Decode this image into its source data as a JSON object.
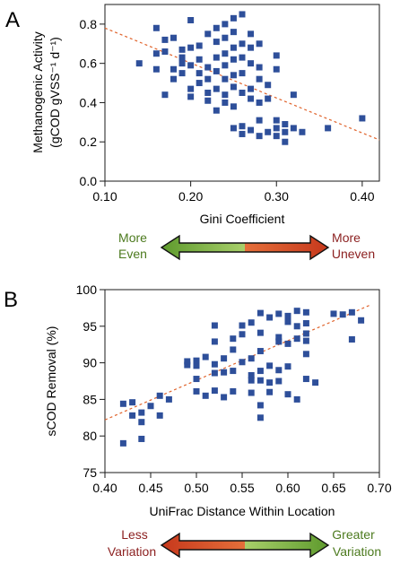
{
  "chart_data": [
    {
      "panel": "A",
      "type": "scatter",
      "xlabel": "Gini Coefficient",
      "ylabel_line1": "Methanogenic Activity",
      "ylabel_line2": "(gCOD gVSS⁻¹ d⁻¹)",
      "xlim": [
        0.1,
        0.42
      ],
      "ylim": [
        0.0,
        0.9
      ],
      "xticks": [
        0.1,
        0.2,
        0.3,
        0.4
      ],
      "xtick_labels": [
        "0.10",
        "0.20",
        "0.30",
        "0.40"
      ],
      "yticks": [
        0.0,
        0.2,
        0.4,
        0.6,
        0.8
      ],
      "ytick_labels": [
        "0.0",
        "0.2",
        "0.4",
        "0.6",
        "0.8"
      ],
      "trendline": {
        "x": [
          0.1,
          0.42
        ],
        "y": [
          0.78,
          0.21
        ]
      },
      "point_color": "#2e4f9a",
      "trend_color": "#e0622a",
      "points": [
        [
          0.14,
          0.6
        ],
        [
          0.16,
          0.78
        ],
        [
          0.16,
          0.65
        ],
        [
          0.16,
          0.57
        ],
        [
          0.17,
          0.72
        ],
        [
          0.17,
          0.66
        ],
        [
          0.17,
          0.44
        ],
        [
          0.18,
          0.73
        ],
        [
          0.18,
          0.57
        ],
        [
          0.18,
          0.52
        ],
        [
          0.19,
          0.67
        ],
        [
          0.19,
          0.63
        ],
        [
          0.19,
          0.6
        ],
        [
          0.19,
          0.55
        ],
        [
          0.2,
          0.82
        ],
        [
          0.2,
          0.68
        ],
        [
          0.2,
          0.59
        ],
        [
          0.2,
          0.47
        ],
        [
          0.2,
          0.43
        ],
        [
          0.21,
          0.69
        ],
        [
          0.21,
          0.62
        ],
        [
          0.21,
          0.55
        ],
        [
          0.21,
          0.5
        ],
        [
          0.22,
          0.75
        ],
        [
          0.22,
          0.58
        ],
        [
          0.22,
          0.52
        ],
        [
          0.22,
          0.45
        ],
        [
          0.22,
          0.41
        ],
        [
          0.23,
          0.78
        ],
        [
          0.23,
          0.71
        ],
        [
          0.23,
          0.63
        ],
        [
          0.23,
          0.56
        ],
        [
          0.23,
          0.47
        ],
        [
          0.23,
          0.36
        ],
        [
          0.24,
          0.8
        ],
        [
          0.24,
          0.73
        ],
        [
          0.24,
          0.65
        ],
        [
          0.24,
          0.59
        ],
        [
          0.24,
          0.52
        ],
        [
          0.24,
          0.44
        ],
        [
          0.24,
          0.4
        ],
        [
          0.25,
          0.83
        ],
        [
          0.25,
          0.76
        ],
        [
          0.25,
          0.68
        ],
        [
          0.25,
          0.62
        ],
        [
          0.25,
          0.54
        ],
        [
          0.25,
          0.48
        ],
        [
          0.25,
          0.38
        ],
        [
          0.25,
          0.27
        ],
        [
          0.26,
          0.85
        ],
        [
          0.26,
          0.7
        ],
        [
          0.26,
          0.63
        ],
        [
          0.26,
          0.55
        ],
        [
          0.26,
          0.45
        ],
        [
          0.26,
          0.28
        ],
        [
          0.26,
          0.24
        ],
        [
          0.27,
          0.75
        ],
        [
          0.27,
          0.68
        ],
        [
          0.27,
          0.6
        ],
        [
          0.27,
          0.47
        ],
        [
          0.27,
          0.42
        ],
        [
          0.27,
          0.26
        ],
        [
          0.28,
          0.7
        ],
        [
          0.28,
          0.58
        ],
        [
          0.28,
          0.52
        ],
        [
          0.28,
          0.4
        ],
        [
          0.28,
          0.31
        ],
        [
          0.28,
          0.23
        ],
        [
          0.29,
          0.49
        ],
        [
          0.29,
          0.42
        ],
        [
          0.29,
          0.25
        ],
        [
          0.3,
          0.64
        ],
        [
          0.3,
          0.57
        ],
        [
          0.3,
          0.31
        ],
        [
          0.3,
          0.27
        ],
        [
          0.3,
          0.23
        ],
        [
          0.31,
          0.2
        ],
        [
          0.31,
          0.29
        ],
        [
          0.31,
          0.25
        ],
        [
          0.32,
          0.44
        ],
        [
          0.32,
          0.27
        ],
        [
          0.33,
          0.25
        ],
        [
          0.36,
          0.27
        ],
        [
          0.4,
          0.32
        ]
      ]
    },
    {
      "panel": "B",
      "type": "scatter",
      "xlabel": "UniFrac Distance Within Location",
      "ylabel": "sCOD Removal (%)",
      "xlim": [
        0.4,
        0.7
      ],
      "ylim": [
        75,
        100
      ],
      "xticks": [
        0.4,
        0.45,
        0.5,
        0.55,
        0.6,
        0.65,
        0.7
      ],
      "xtick_labels": [
        "0.40",
        "0.45",
        "0.50",
        "0.55",
        "0.60",
        "0.65",
        "0.70"
      ],
      "yticks": [
        75,
        80,
        85,
        90,
        95,
        100
      ],
      "ytick_labels": [
        "75",
        "80",
        "85",
        "90",
        "95",
        "100"
      ],
      "trendline": {
        "x": [
          0.4,
          0.69
        ],
        "y": [
          82.2,
          97.9
        ]
      },
      "point_color": "#2e4f9a",
      "trend_color": "#e0622a",
      "points": [
        [
          0.42,
          84.4
        ],
        [
          0.42,
          79.0
        ],
        [
          0.43,
          82.8
        ],
        [
          0.43,
          84.6
        ],
        [
          0.44,
          83.2
        ],
        [
          0.44,
          81.9
        ],
        [
          0.44,
          79.6
        ],
        [
          0.45,
          84.1
        ],
        [
          0.46,
          85.5
        ],
        [
          0.46,
          82.8
        ],
        [
          0.47,
          85.0
        ],
        [
          0.49,
          89.7
        ],
        [
          0.49,
          90.2
        ],
        [
          0.5,
          89.6
        ],
        [
          0.5,
          87.8
        ],
        [
          0.5,
          86.1
        ],
        [
          0.5,
          90.3
        ],
        [
          0.51,
          90.8
        ],
        [
          0.51,
          85.5
        ],
        [
          0.52,
          95.1
        ],
        [
          0.52,
          92.9
        ],
        [
          0.52,
          89.8
        ],
        [
          0.52,
          88.6
        ],
        [
          0.52,
          86.2
        ],
        [
          0.53,
          90.6
        ],
        [
          0.53,
          88.7
        ],
        [
          0.53,
          85.3
        ],
        [
          0.54,
          93.3
        ],
        [
          0.54,
          91.8
        ],
        [
          0.54,
          88.9
        ],
        [
          0.54,
          86.1
        ],
        [
          0.55,
          95.1
        ],
        [
          0.55,
          93.9
        ],
        [
          0.55,
          90.1
        ],
        [
          0.56,
          95.5
        ],
        [
          0.56,
          90.6
        ],
        [
          0.56,
          88.3
        ],
        [
          0.56,
          87.6
        ],
        [
          0.56,
          85.9
        ],
        [
          0.57,
          96.8
        ],
        [
          0.57,
          94.1
        ],
        [
          0.57,
          91.6
        ],
        [
          0.57,
          88.9
        ],
        [
          0.57,
          87.6
        ],
        [
          0.57,
          82.5
        ],
        [
          0.57,
          84.2
        ],
        [
          0.58,
          96.2
        ],
        [
          0.58,
          89.6
        ],
        [
          0.58,
          86.0
        ],
        [
          0.58,
          87.3
        ],
        [
          0.59,
          96.7
        ],
        [
          0.59,
          93.5
        ],
        [
          0.59,
          92.9
        ],
        [
          0.59,
          89.0
        ],
        [
          0.59,
          87.5
        ],
        [
          0.6,
          96.4
        ],
        [
          0.6,
          95.6
        ],
        [
          0.6,
          92.6
        ],
        [
          0.6,
          89.5
        ],
        [
          0.6,
          85.7
        ],
        [
          0.61,
          97.1
        ],
        [
          0.61,
          95.0
        ],
        [
          0.61,
          93.3
        ],
        [
          0.61,
          85.0
        ],
        [
          0.62,
          96.9
        ],
        [
          0.62,
          95.4
        ],
        [
          0.62,
          94.0
        ],
        [
          0.62,
          93.0
        ],
        [
          0.62,
          91.2
        ],
        [
          0.62,
          87.8
        ],
        [
          0.63,
          87.3
        ],
        [
          0.65,
          96.7
        ],
        [
          0.66,
          96.6
        ],
        [
          0.67,
          96.9
        ],
        [
          0.67,
          93.2
        ],
        [
          0.68,
          95.8
        ]
      ]
    }
  ],
  "arrows": [
    {
      "left_line1": "More",
      "left_line2": "Even",
      "right_line1": "More",
      "right_line2": "Uneven",
      "left_color": "#4c7a1e",
      "right_color": "#8b1f1f",
      "left_fill": "#5e9a2d",
      "right_fill": "#c6381c",
      "bar_light": "#8fc04d",
      "bar_light_red": "#e56f3a"
    },
    {
      "left_line1": "Less",
      "left_line2": "Variation",
      "right_line1": "Greater",
      "right_line2": "Variation",
      "left_color": "#8b1f1f",
      "right_color": "#4c7a1e",
      "left_fill": "#c6381c",
      "right_fill": "#5e9a2d",
      "bar_light": "#8fc04d",
      "bar_light_red": "#e56f3a"
    }
  ]
}
